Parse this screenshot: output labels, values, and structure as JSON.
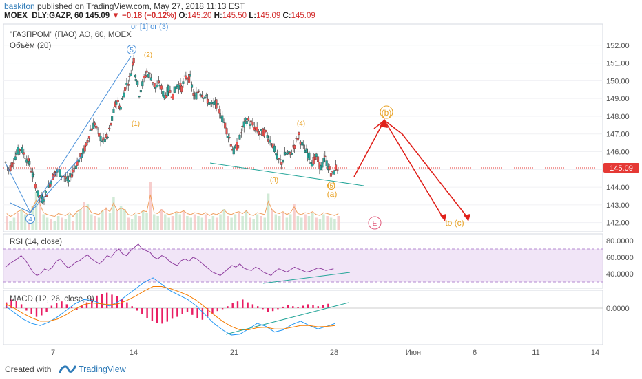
{
  "header": {
    "author": "baskiton",
    "published": "published on TradingView.com, May 27, 2018 11:13 EST",
    "symbol_line": "MOEX_DLY:GAZP, 60",
    "last": "145.09",
    "change": "−0.18 (−0.12%)",
    "open_k": "O:",
    "open_v": "145.20",
    "high_k": "H:",
    "high_v": "145.50",
    "low_k": "L:",
    "low_v": "145.09",
    "close_k": "C:",
    "close_v": "145.09"
  },
  "legend": {
    "title": "\"ГАЗПРОМ\" (ПАО) АО, 60, MOEX",
    "volume": "Объём (20)",
    "rsi": "RSI (14, close)",
    "macd": "MACD (12, 26, close, 9)"
  },
  "footer": {
    "made_with": "Created with",
    "brand": "TradingView"
  },
  "colors": {
    "up": "#26a69a",
    "down": "#ef5350",
    "wave_blue": "#4a90d9",
    "wave_orange": "#e8a020",
    "arrow_red": "#e0201a",
    "trend_teal": "#26a69a",
    "rsi": "#8e3c9e",
    "macd_hist": "#e91e63",
    "macd_line": "#2196f3",
    "signal_line": "#f57c00"
  },
  "chart_data": {
    "type": "candlestick",
    "title": "\"ГАЗПРОМ\" (ПАО) АО, 60, MOEX",
    "price_axis": {
      "ticks": [
        "152.00",
        "151.00",
        "150.00",
        "149.00",
        "148.00",
        "147.00",
        "146.00",
        "145.00",
        "144.00",
        "143.00",
        "142.00"
      ],
      "range": [
        141.6,
        153.0
      ]
    },
    "last_price": 145.09,
    "time_axis": {
      "labels": [
        "7",
        "14",
        "21",
        "28",
        "Июн",
        "6",
        "11",
        "14"
      ]
    },
    "price_path": [
      [
        0,
        145.4
      ],
      [
        3,
        145.0
      ],
      [
        6,
        145.3
      ],
      [
        10,
        145.9
      ],
      [
        14,
        146.2
      ],
      [
        18,
        145.8
      ],
      [
        22,
        145.3
      ],
      [
        26,
        144.5
      ],
      [
        30,
        143.6
      ],
      [
        34,
        143.3
      ],
      [
        38,
        143.7
      ],
      [
        42,
        144.4
      ],
      [
        46,
        144.9
      ],
      [
        50,
        144.8
      ],
      [
        54,
        144.6
      ],
      [
        58,
        144.3
      ],
      [
        62,
        144.9
      ],
      [
        66,
        145.4
      ],
      [
        70,
        145.8
      ],
      [
        74,
        146.3
      ],
      [
        78,
        147.2
      ],
      [
        82,
        147.6
      ],
      [
        86,
        146.9
      ],
      [
        90,
        146.6
      ],
      [
        94,
        146.8
      ],
      [
        98,
        147.8
      ],
      [
        102,
        148.9
      ],
      [
        106,
        148.5
      ],
      [
        110,
        149.6
      ],
      [
        114,
        150.1
      ],
      [
        118,
        151.2
      ],
      [
        120,
        150.2
      ],
      [
        123,
        149.3
      ],
      [
        126,
        149.8
      ],
      [
        130,
        150.5
      ],
      [
        134,
        150.2
      ],
      [
        138,
        149.6
      ],
      [
        142,
        149.8
      ],
      [
        146,
        149.1
      ],
      [
        150,
        149.5
      ],
      [
        154,
        149.2
      ],
      [
        158,
        149.8
      ],
      [
        162,
        149.6
      ],
      [
        166,
        150.2
      ],
      [
        170,
        150.1
      ],
      [
        174,
        149.0
      ],
      [
        178,
        149.5
      ],
      [
        182,
        149.2
      ],
      [
        186,
        148.9
      ],
      [
        190,
        148.6
      ],
      [
        194,
        148.7
      ],
      [
        198,
        148.1
      ],
      [
        202,
        147.5
      ],
      [
        206,
        146.8
      ],
      [
        210,
        146.0
      ],
      [
        214,
        146.4
      ],
      [
        218,
        147.3
      ],
      [
        222,
        147.8
      ],
      [
        226,
        147.6
      ],
      [
        230,
        147.3
      ],
      [
        234,
        147.0
      ],
      [
        238,
        147.1
      ],
      [
        242,
        146.8
      ],
      [
        246,
        146.4
      ],
      [
        250,
        145.6
      ],
      [
        254,
        145.4
      ],
      [
        258,
        145.9
      ],
      [
        262,
        145.8
      ],
      [
        266,
        146.4
      ],
      [
        270,
        146.9
      ],
      [
        274,
        146.2
      ],
      [
        278,
        145.9
      ],
      [
        282,
        145.4
      ],
      [
        286,
        145.7
      ],
      [
        290,
        145.1
      ],
      [
        294,
        145.6
      ],
      [
        298,
        145.0
      ],
      [
        301,
        144.7
      ],
      [
        304,
        145.1
      ],
      [
        307,
        145.09
      ]
    ],
    "volume_profile": [
      8,
      5,
      7,
      10,
      12,
      9,
      6,
      14,
      22,
      18,
      9,
      7,
      6,
      5,
      8,
      7,
      6,
      9,
      5,
      10,
      12,
      16,
      15,
      9,
      8,
      7,
      11,
      13,
      10,
      19,
      11,
      14,
      12,
      7,
      6,
      9,
      8,
      11,
      10,
      28,
      9,
      8,
      12,
      9,
      7,
      8,
      10,
      9,
      11,
      8,
      7,
      9,
      8,
      7,
      9,
      6,
      8,
      7,
      9,
      12,
      8,
      7,
      9,
      10,
      8,
      11,
      7,
      6,
      9,
      8,
      7,
      21,
      12,
      9,
      8,
      10,
      7,
      9,
      15,
      8,
      7,
      9,
      8,
      10,
      7,
      6,
      9,
      8,
      7,
      6,
      8
    ],
    "waves": {
      "impulse_labels": [
        "4",
        "5",
        "(1)",
        "(2)",
        "(3)",
        "(4)",
        "(5)",
        "(a)",
        "(b)",
        "to (c)",
        "E"
      ],
      "top_note": "or [1] or (3)",
      "price_levels": {
        "wave4_low": 142.6,
        "wave5_high": 151.3,
        "w1": 147.4,
        "w2": 150.8,
        "w3": 144.6,
        "w4": 147.2,
        "w5": 144.3,
        "b_target": 147.9,
        "c_target": 142.2
      }
    },
    "rsi": {
      "ticks": [
        "80.0000",
        "60.0000",
        "40.0000"
      ],
      "range": [
        25,
        85
      ],
      "overbought": 70,
      "oversold": 30,
      "values": [
        48,
        52,
        55,
        58,
        62,
        57,
        50,
        42,
        38,
        40,
        46,
        44,
        48,
        55,
        58,
        52,
        47,
        50,
        54,
        56,
        60,
        63,
        58,
        55,
        52,
        56,
        62,
        60,
        66,
        70,
        64,
        62,
        68,
        72,
        76,
        70,
        68,
        66,
        60,
        58,
        62,
        60,
        55,
        52,
        50,
        56,
        58,
        55,
        60,
        58,
        54,
        50,
        46,
        42,
        40,
        38,
        42,
        46,
        50,
        48,
        52,
        47,
        45,
        44,
        48,
        46,
        42,
        40,
        38,
        43,
        46,
        44,
        42,
        45,
        48,
        46,
        44,
        42,
        43,
        45,
        47,
        46,
        44,
        45,
        46
      ]
    },
    "macd": {
      "zero_label": "0.0000",
      "histogram": [
        0.12,
        0.18,
        0.15,
        0.08,
        -0.05,
        -0.12,
        -0.18,
        -0.15,
        -0.08,
        0.05,
        0.1,
        0.14,
        0.08,
        0.02,
        -0.03,
        0.06,
        0.12,
        0.2,
        0.26,
        0.3,
        0.32,
        0.28,
        0.25,
        0.2,
        0.12,
        0.04,
        -0.05,
        -0.12,
        -0.2,
        -0.26,
        -0.3,
        -0.32,
        -0.28,
        -0.22,
        -0.18,
        -0.12,
        -0.08,
        -0.14,
        -0.2,
        -0.24,
        -0.18,
        -0.12,
        -0.06,
        -0.02,
        0.04,
        0.1,
        0.14,
        0.18,
        0.12,
        0.08,
        0.04,
        -0.02,
        -0.08,
        -0.06,
        -0.02,
        0.03,
        0.06,
        0.04,
        0.02,
        0.05,
        0.08,
        0.06,
        0.04,
        0.07,
        0.09
      ],
      "macd_line": [
        0.05,
        -0.1,
        -0.25,
        -0.35,
        -0.4,
        -0.32,
        -0.2,
        -0.05,
        0.1,
        0.2,
        0.18,
        0.1,
        0.05,
        0.15,
        0.3,
        0.45,
        0.6,
        0.7,
        0.55,
        0.4,
        0.3,
        0.2,
        0.05,
        -0.15,
        -0.35,
        -0.5,
        -0.62,
        -0.6,
        -0.48,
        -0.35,
        -0.42,
        -0.55,
        -0.5,
        -0.38,
        -0.3,
        -0.4,
        -0.48,
        -0.42,
        -0.35
      ],
      "signal_line": [
        0.1,
        0.0,
        -0.12,
        -0.22,
        -0.3,
        -0.3,
        -0.25,
        -0.15,
        -0.02,
        0.08,
        0.12,
        0.1,
        0.08,
        0.1,
        0.18,
        0.28,
        0.4,
        0.5,
        0.5,
        0.45,
        0.38,
        0.3,
        0.18,
        0.02,
        -0.15,
        -0.3,
        -0.42,
        -0.5,
        -0.5,
        -0.45,
        -0.44,
        -0.48,
        -0.48,
        -0.44,
        -0.4,
        -0.4,
        -0.43,
        -0.42,
        -0.4
      ]
    }
  }
}
